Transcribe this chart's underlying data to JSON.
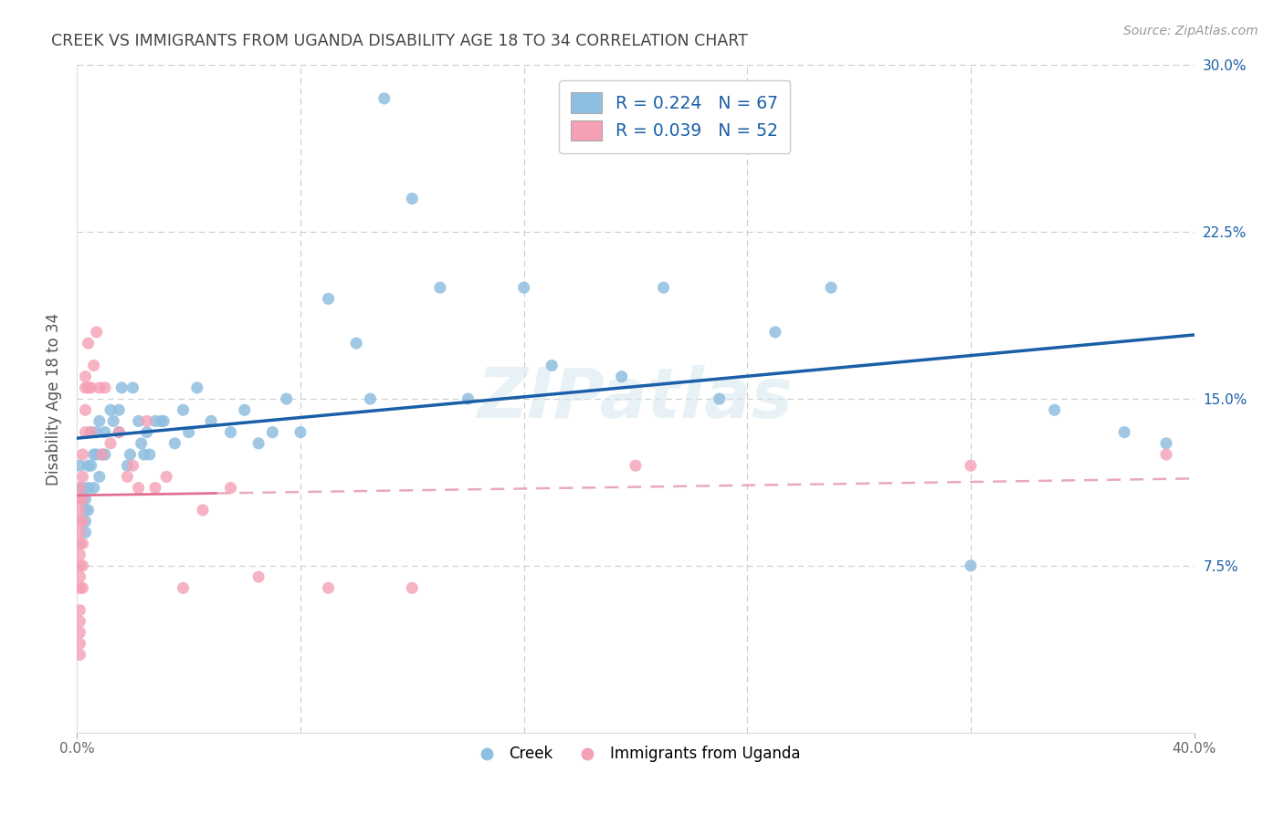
{
  "title": "CREEK VS IMMIGRANTS FROM UGANDA DISABILITY AGE 18 TO 34 CORRELATION CHART",
  "source": "Source: ZipAtlas.com",
  "ylabel": "Disability Age 18 to 34",
  "xmin": 0.0,
  "xmax": 0.4,
  "ymin": 0.0,
  "ymax": 0.3,
  "creek_R": 0.224,
  "creek_N": 67,
  "uganda_R": 0.039,
  "uganda_N": 52,
  "creek_color": "#8fbfe0",
  "uganda_color": "#f4a0b5",
  "creek_line_color": "#1a5fa8",
  "uganda_line_solid_color": "#e07090",
  "uganda_line_dash_color": "#e8aabb",
  "legend_text_color": "#1a5fa8",
  "title_color": "#444444",
  "watermark": "ZIPatlas",
  "grid_color": "#cccccc",
  "creek_x": [
    0.001,
    0.001,
    0.002,
    0.002,
    0.003,
    0.003,
    0.003,
    0.003,
    0.004,
    0.004,
    0.004,
    0.005,
    0.005,
    0.006,
    0.006,
    0.007,
    0.007,
    0.008,
    0.008,
    0.009,
    0.01,
    0.01,
    0.012,
    0.013,
    0.015,
    0.015,
    0.016,
    0.018,
    0.019,
    0.02,
    0.022,
    0.023,
    0.024,
    0.025,
    0.026,
    0.028,
    0.03,
    0.031,
    0.035,
    0.038,
    0.04,
    0.043,
    0.048,
    0.055,
    0.06,
    0.065,
    0.07,
    0.075,
    0.08,
    0.09,
    0.1,
    0.105,
    0.11,
    0.12,
    0.13,
    0.14,
    0.16,
    0.17,
    0.195,
    0.21,
    0.23,
    0.25,
    0.27,
    0.32,
    0.35,
    0.375,
    0.39
  ],
  "creek_y": [
    0.12,
    0.11,
    0.11,
    0.105,
    0.105,
    0.1,
    0.095,
    0.09,
    0.12,
    0.11,
    0.1,
    0.135,
    0.12,
    0.125,
    0.11,
    0.135,
    0.125,
    0.14,
    0.115,
    0.125,
    0.135,
    0.125,
    0.145,
    0.14,
    0.145,
    0.135,
    0.155,
    0.12,
    0.125,
    0.155,
    0.14,
    0.13,
    0.125,
    0.135,
    0.125,
    0.14,
    0.14,
    0.14,
    0.13,
    0.145,
    0.135,
    0.155,
    0.14,
    0.135,
    0.145,
    0.13,
    0.135,
    0.15,
    0.135,
    0.195,
    0.175,
    0.15,
    0.285,
    0.24,
    0.2,
    0.15,
    0.2,
    0.165,
    0.16,
    0.2,
    0.15,
    0.18,
    0.2,
    0.075,
    0.145,
    0.135,
    0.13
  ],
  "uganda_x": [
    0.001,
    0.001,
    0.001,
    0.001,
    0.001,
    0.001,
    0.001,
    0.001,
    0.001,
    0.001,
    0.001,
    0.001,
    0.001,
    0.001,
    0.001,
    0.002,
    0.002,
    0.002,
    0.002,
    0.002,
    0.002,
    0.002,
    0.003,
    0.003,
    0.003,
    0.003,
    0.004,
    0.004,
    0.005,
    0.005,
    0.006,
    0.007,
    0.008,
    0.009,
    0.01,
    0.012,
    0.015,
    0.018,
    0.02,
    0.022,
    0.025,
    0.028,
    0.032,
    0.038,
    0.045,
    0.055,
    0.065,
    0.09,
    0.12,
    0.2,
    0.32,
    0.39
  ],
  "uganda_y": [
    0.11,
    0.105,
    0.1,
    0.095,
    0.09,
    0.085,
    0.08,
    0.075,
    0.07,
    0.065,
    0.055,
    0.05,
    0.045,
    0.04,
    0.035,
    0.125,
    0.115,
    0.105,
    0.095,
    0.085,
    0.075,
    0.065,
    0.16,
    0.155,
    0.145,
    0.135,
    0.175,
    0.155,
    0.155,
    0.135,
    0.165,
    0.18,
    0.155,
    0.125,
    0.155,
    0.13,
    0.135,
    0.115,
    0.12,
    0.11,
    0.14,
    0.11,
    0.115,
    0.065,
    0.1,
    0.11,
    0.07,
    0.065,
    0.065,
    0.12,
    0.12,
    0.125
  ]
}
